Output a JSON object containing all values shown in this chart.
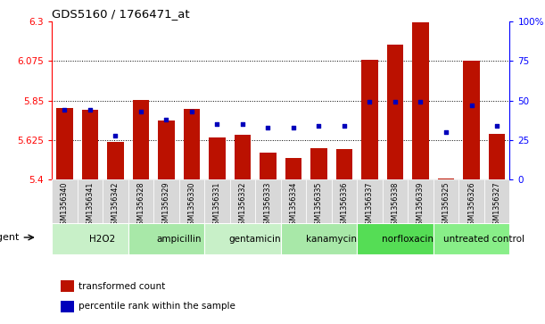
{
  "title": "GDS5160 / 1766471_at",
  "samples": [
    "GSM1356340",
    "GSM1356341",
    "GSM1356342",
    "GSM1356328",
    "GSM1356329",
    "GSM1356330",
    "GSM1356331",
    "GSM1356332",
    "GSM1356333",
    "GSM1356334",
    "GSM1356335",
    "GSM1356336",
    "GSM1356337",
    "GSM1356338",
    "GSM1356339",
    "GSM1356325",
    "GSM1356326",
    "GSM1356327"
  ],
  "bar_values": [
    5.805,
    5.795,
    5.615,
    5.855,
    5.735,
    5.8,
    5.64,
    5.655,
    5.555,
    5.525,
    5.58,
    5.575,
    6.08,
    6.165,
    6.295,
    5.405,
    6.075,
    5.66
  ],
  "percentile_values": [
    44,
    44,
    28,
    43,
    38,
    43,
    35,
    35,
    33,
    33,
    34,
    34,
    49,
    49,
    49,
    30,
    47,
    34
  ],
  "groups": [
    {
      "label": "H2O2",
      "start": 0,
      "end": 3,
      "color": "#c8f0c8"
    },
    {
      "label": "ampicillin",
      "start": 3,
      "end": 6,
      "color": "#a8e8a8"
    },
    {
      "label": "gentamicin",
      "start": 6,
      "end": 9,
      "color": "#c8f0c8"
    },
    {
      "label": "kanamycin",
      "start": 9,
      "end": 12,
      "color": "#a8e8a8"
    },
    {
      "label": "norfloxacin",
      "start": 12,
      "end": 15,
      "color": "#55dd55"
    },
    {
      "label": "untreated control",
      "start": 15,
      "end": 18,
      "color": "#88ee88"
    }
  ],
  "y_min": 5.4,
  "y_max": 6.3,
  "y_ticks": [
    5.4,
    5.625,
    5.85,
    6.075,
    6.3
  ],
  "y_tick_labels": [
    "5.4",
    "5.625",
    "5.85",
    "6.075",
    "6.3"
  ],
  "right_y_ticks": [
    0,
    25,
    50,
    75,
    100
  ],
  "right_y_labels": [
    "0",
    "25",
    "50",
    "75",
    "100%"
  ],
  "bar_color": "#bb1100",
  "dot_color": "#0000bb",
  "bar_width": 0.65,
  "plot_bg": "#ffffff",
  "agent_label": "agent",
  "legend_items": [
    {
      "label": "transformed count",
      "color": "#bb1100"
    },
    {
      "label": "percentile rank within the sample",
      "color": "#0000bb"
    }
  ]
}
